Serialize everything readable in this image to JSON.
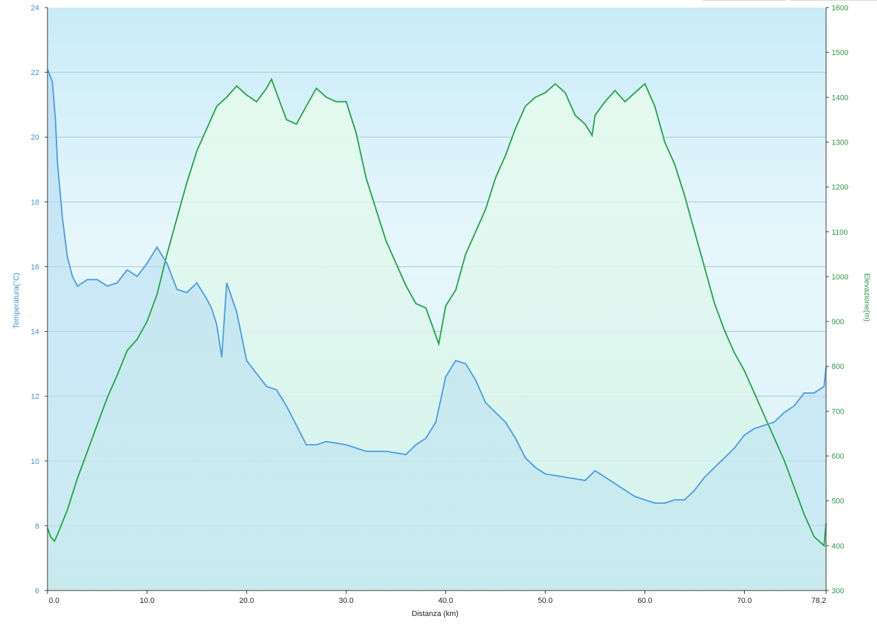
{
  "chart_data": {
    "type": "line",
    "xlabel": "Distanza  (km)",
    "ylabel_left": "Temperatura(°C)",
    "ylabel_right": "Elevazione(m)",
    "x_ticks": [
      "0.0",
      "10.0",
      "20.0",
      "30.0",
      "40.0",
      "50.0",
      "60.0",
      "70.0",
      "78.2"
    ],
    "xlim": [
      0,
      78.2
    ],
    "ylim_left": [
      6,
      24
    ],
    "ylim_right": [
      300,
      1600
    ],
    "y_ticks_left": [
      "6",
      "8",
      "10",
      "12",
      "14",
      "16",
      "18",
      "20",
      "22",
      "24"
    ],
    "y_ticks_right": [
      "300",
      "400",
      "500",
      "600",
      "700",
      "800",
      "900",
      "1000",
      "1100",
      "1200",
      "1300",
      "1400",
      "1500",
      "1600"
    ],
    "grid": "horizontal",
    "colors": {
      "temperature": "#4d9fe6",
      "elevation": "#28a84a"
    },
    "series": [
      {
        "axis": "left",
        "x": [
          0,
          0.5,
          0.8,
          1,
          1.5,
          2,
          2.5,
          3,
          3.5,
          4,
          5,
          6,
          7,
          8,
          9,
          10,
          11,
          12,
          13,
          14,
          15,
          16,
          16.5,
          17,
          17.5,
          18,
          19,
          20,
          21,
          22,
          23,
          24,
          25,
          26,
          27,
          28,
          30,
          32,
          34,
          36,
          37,
          38,
          39,
          40,
          41,
          42,
          43,
          44,
          45,
          46,
          47,
          48,
          49,
          50,
          52,
          54,
          55,
          56,
          57,
          58,
          59,
          60,
          61,
          62,
          63,
          64,
          65,
          66,
          67,
          68,
          69,
          70,
          71,
          72,
          73,
          74,
          75,
          76,
          77,
          78,
          78.2
        ],
        "values": [
          22.1,
          21.7,
          20.5,
          19.2,
          17.5,
          16.3,
          15.7,
          15.4,
          15.5,
          15.6,
          15.6,
          15.4,
          15.5,
          15.9,
          15.7,
          16.1,
          16.6,
          16.1,
          15.3,
          15.2,
          15.5,
          15,
          14.7,
          14.2,
          13.2,
          15.5,
          14.6,
          13.1,
          12.7,
          12.3,
          12.2,
          11.7,
          11.1,
          10.5,
          10.5,
          10.6,
          10.5,
          10.3,
          10.3,
          10.2,
          10.5,
          10.7,
          11.2,
          12.6,
          13.1,
          13,
          12.5,
          11.8,
          11.5,
          11.2,
          10.7,
          10.1,
          9.8,
          9.6,
          9.5,
          9.4,
          9.7,
          9.5,
          9.3,
          9.1,
          8.9,
          8.8,
          8.7,
          8.7,
          8.8,
          8.8,
          9.1,
          9.5,
          9.8,
          10.1,
          10.4,
          10.8,
          11,
          11.1,
          11.2,
          11.5,
          11.7,
          12.1,
          12.1,
          12.3,
          12.9
        ]
      },
      {
        "axis": "right",
        "x": [
          0,
          0.3,
          0.7,
          1,
          2,
          3,
          4,
          5,
          6,
          7,
          8,
          9,
          10,
          11,
          12,
          13,
          14,
          15,
          16,
          17,
          18,
          19,
          20,
          21,
          22,
          22.5,
          23,
          24,
          25,
          26,
          27,
          28,
          29,
          30,
          31,
          32,
          33,
          34,
          35,
          36,
          37,
          38,
          38.5,
          39.3,
          40,
          41,
          42,
          43,
          44,
          45,
          46,
          47,
          48,
          49,
          50,
          51,
          52,
          53,
          54,
          54.7,
          55,
          56,
          57,
          58,
          59,
          60,
          61,
          62,
          63,
          64,
          65,
          66,
          67,
          68,
          69,
          70,
          71,
          72,
          73,
          74,
          75,
          76,
          77,
          78,
          78.2
        ],
        "values": [
          440,
          420,
          410,
          425,
          480,
          550,
          610,
          670,
          730,
          780,
          835,
          860,
          900,
          960,
          1050,
          1130,
          1210,
          1280,
          1330,
          1380,
          1400,
          1425,
          1405,
          1390,
          1420,
          1440,
          1410,
          1350,
          1340,
          1380,
          1420,
          1400,
          1390,
          1390,
          1320,
          1220,
          1150,
          1080,
          1030,
          980,
          940,
          930,
          900,
          850,
          935,
          970,
          1050,
          1100,
          1150,
          1220,
          1270,
          1330,
          1380,
          1400,
          1410,
          1430,
          1410,
          1360,
          1340,
          1315,
          1360,
          1390,
          1415,
          1390,
          1410,
          1430,
          1380,
          1300,
          1250,
          1180,
          1100,
          1020,
          940,
          880,
          830,
          790,
          740,
          690,
          640,
          590,
          530,
          470,
          420,
          400,
          450
        ]
      }
    ]
  }
}
